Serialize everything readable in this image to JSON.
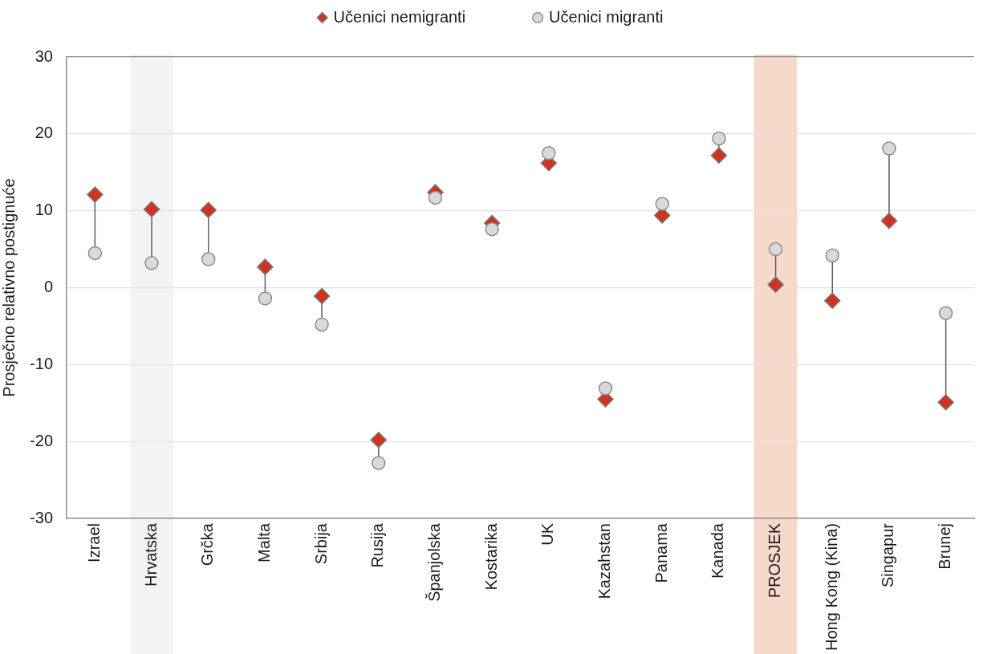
{
  "chart_data": {
    "type": "scatter",
    "categories": [
      "Izrael",
      "Hrvatska",
      "Grčka",
      "Malta",
      "Srbija",
      "Rusija",
      "Španjolska",
      "Kostarika",
      "UK",
      "Kazahstan",
      "Panama",
      "Kanada",
      "PROSJEK",
      "Hong Kong (Kina)",
      "Singapur",
      "Brunej"
    ],
    "series": [
      {
        "name": "Učenici nemigranti",
        "color": "#d0331f",
        "marker": "diamond",
        "values": [
          12.1,
          10.2,
          10.1,
          2.7,
          -1.1,
          -19.8,
          12.4,
          8.4,
          16.2,
          -14.5,
          9.4,
          17.2,
          0.4,
          -1.7,
          8.7,
          -14.9
        ]
      },
      {
        "name": "Učenici migranti",
        "color": "#d9d9d9",
        "marker": "circle",
        "values": [
          4.5,
          3.2,
          3.7,
          -1.4,
          -4.8,
          -22.8,
          11.7,
          7.6,
          17.5,
          -13.1,
          10.9,
          19.4,
          5.0,
          4.2,
          18.1,
          -3.3
        ]
      }
    ],
    "ylabel": "Prosječno relativno postignuće",
    "ylim": [
      -30,
      30
    ],
    "yticks": [
      -30,
      -20,
      -10,
      0,
      10,
      20,
      30
    ],
    "grid": "y",
    "legend": "top",
    "bands": [
      {
        "axis": "x",
        "from": "Hrvatska",
        "to": "Hrvatska",
        "color": "#f3f3f3"
      },
      {
        "axis": "x",
        "from": "PROSJEK",
        "to": "PROSJEK",
        "color": "#f7d9cc"
      }
    ]
  }
}
